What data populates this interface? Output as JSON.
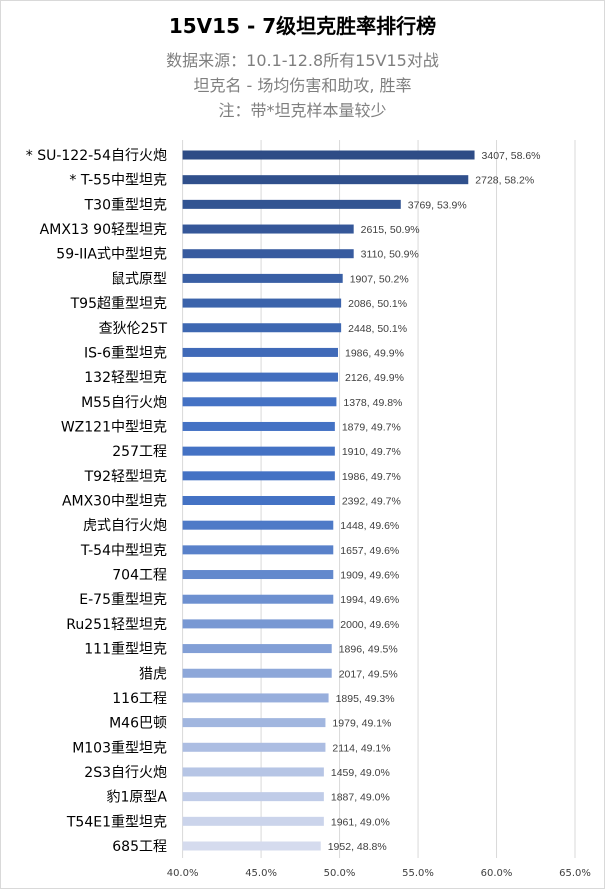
{
  "chart_data": {
    "type": "bar",
    "orientation": "horizontal",
    "title": "15V15 - 7级坦克胜率排行榜",
    "subtitles": [
      "数据来源：10.1-12.8所有15V15对战",
      "坦克名 - 场均伤害和助攻, 胜率",
      "注：带*坦克样本量较少"
    ],
    "xlim": [
      40,
      65
    ],
    "x_ticks": [
      "40.0%",
      "45.0%",
      "50.0%",
      "55.0%",
      "60.0%",
      "65.0%"
    ],
    "grid": true,
    "categories": [
      "* SU-122-54自行火炮",
      "* T-55中型坦克",
      "T30重型坦克",
      "AMX13 90轻型坦克",
      "59-IIA式中型坦克",
      "鼠式原型",
      "T95超重型坦克",
      "查狄伦25T",
      "IS-6重型坦克",
      "132轻型坦克",
      "M55自行火炮",
      "WZ121中型坦克",
      "257工程",
      "T92轻型坦克",
      "AMX30中型坦克",
      "虎式自行火炮",
      "T-54中型坦克",
      "704工程",
      "E-75重型坦克",
      "Ru251轻型坦克",
      "111重型坦克",
      "猎虎",
      "116工程",
      "M46巴顿",
      "M103重型坦克",
      "2S3自行火炮",
      "豹1原型A",
      "T54E1重型坦克",
      "685工程"
    ],
    "values": [
      58.6,
      58.2,
      53.9,
      50.9,
      50.9,
      50.2,
      50.1,
      50.1,
      49.9,
      49.9,
      49.8,
      49.7,
      49.7,
      49.7,
      49.7,
      49.6,
      49.6,
      49.6,
      49.6,
      49.6,
      49.5,
      49.5,
      49.3,
      49.1,
      49.1,
      49.0,
      49.0,
      49.0,
      48.8
    ],
    "damage_assist": [
      3407,
      2728,
      3769,
      2615,
      3110,
      1907,
      2086,
      2448,
      1986,
      2126,
      1378,
      1879,
      1910,
      1986,
      2392,
      1448,
      1657,
      1909,
      1994,
      2000,
      1896,
      2017,
      1895,
      1979,
      2114,
      1459,
      1887,
      1961,
      1952
    ],
    "data_labels": [
      "3407, 58.6%",
      "2728, 58.2%",
      "3769, 53.9%",
      "2615, 50.9%",
      "3110, 50.9%",
      "1907, 50.2%",
      "2086, 50.1%",
      "2448, 50.1%",
      "1986, 49.9%",
      "2126, 49.9%",
      "1378, 49.8%",
      "1879, 49.7%",
      "1910, 49.7%",
      "1986, 49.7%",
      "2392, 49.7%",
      "1448, 49.6%",
      "1657, 49.6%",
      "1909, 49.6%",
      "1994, 49.6%",
      "2000, 49.6%",
      "1896, 49.5%",
      "2017, 49.5%",
      "1895, 49.3%",
      "1979, 49.1%",
      "2114, 49.1%",
      "1459, 49.0%",
      "1887, 49.0%",
      "1961, 49.0%",
      "1952, 48.8%"
    ],
    "colors": {
      "top": "#2e4c86",
      "mid": "#4472c4",
      "bottom": "#d5dbee",
      "grid": "#d9d9d9"
    }
  }
}
